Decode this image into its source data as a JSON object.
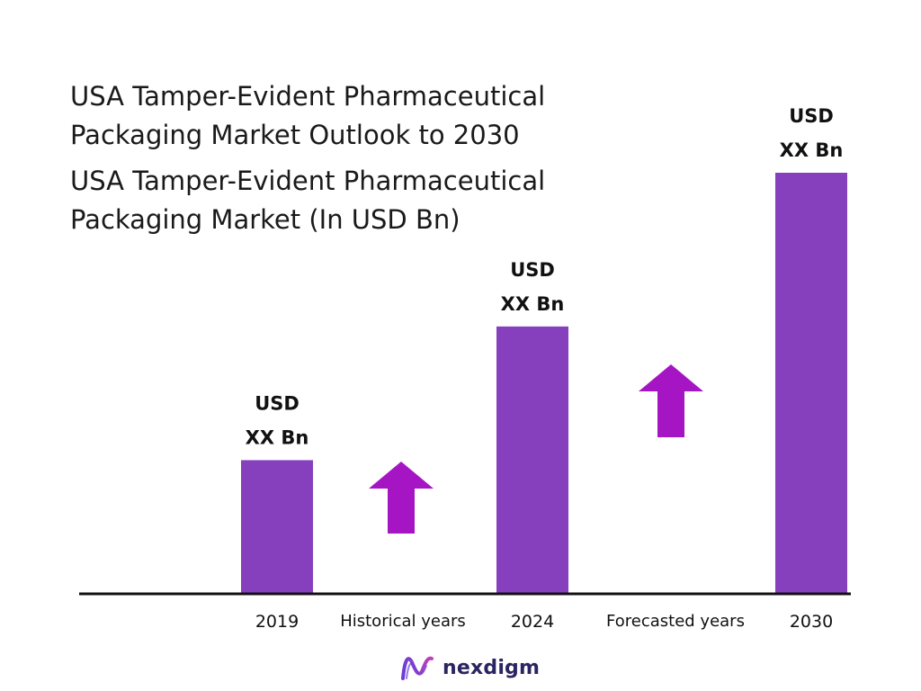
{
  "title": {
    "line1": "USA Tamper-Evident Pharmaceutical",
    "line2": "Packaging Market Outlook to 2030"
  },
  "subtitle": {
    "line1": "USA Tamper-Evident Pharmaceutical",
    "line2": "Packaging Market (In USD Bn)"
  },
  "chart_data": {
    "type": "bar",
    "categories": [
      "2019",
      "2024",
      "2030"
    ],
    "values": [
      1,
      2,
      3.15
    ],
    "value_labels": [
      [
        "USD",
        "XX Bn"
      ],
      [
        "USD",
        "XX Bn"
      ],
      [
        "USD",
        "XX Bn"
      ]
    ],
    "period_labels": [
      "Historical years",
      "Forecasted years"
    ],
    "ylim": [
      0,
      3.5
    ],
    "grid": false,
    "legend": "none",
    "bar_color": "#8640bd",
    "arrow_color": "#a615c4",
    "axis_color": "#111111"
  },
  "brand": {
    "name": "nexdigm",
    "icon": "nexdigm-logo-icon",
    "colors": [
      "#6b3fd6",
      "#c23fb8",
      "#2a2560"
    ]
  }
}
